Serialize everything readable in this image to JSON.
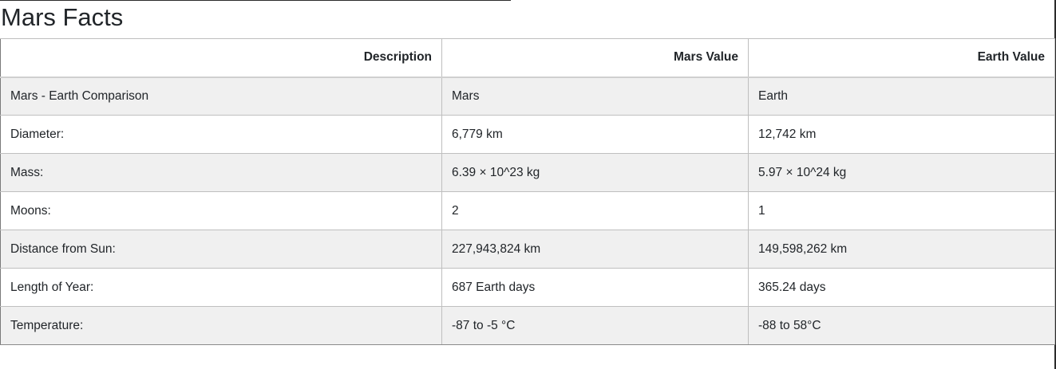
{
  "page": {
    "title": "Mars Facts"
  },
  "table": {
    "headers": [
      "Description",
      "Mars Value",
      "Earth Value"
    ],
    "rows": [
      [
        "Mars - Earth Comparison",
        "Mars",
        "Earth"
      ],
      [
        "Diameter:",
        "6,779 km",
        "12,742 km"
      ],
      [
        "Mass:",
        "6.39 × 10^23 kg",
        "5.97 × 10^24 kg"
      ],
      [
        "Moons:",
        "2",
        "1"
      ],
      [
        "Distance from Sun:",
        "227,943,824 km",
        "149,598,262 km"
      ],
      [
        "Length of Year:",
        "687 Earth days",
        "365.24 days"
      ],
      [
        "Temperature:",
        "-87 to -5 °C",
        "-88 to 58°C"
      ]
    ]
  },
  "colors": {
    "text": "#212529",
    "stripe": "#f0f0f0",
    "border": "#bfbfbf"
  }
}
